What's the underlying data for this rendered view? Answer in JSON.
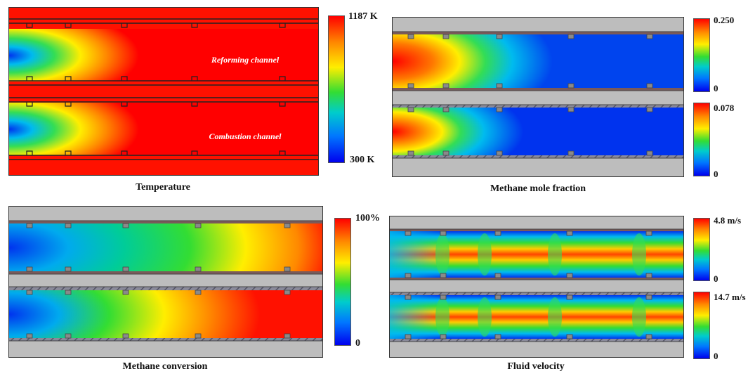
{
  "panels": {
    "temperature": {
      "caption": "Temperature",
      "max_label": "1187 K",
      "min_label": "300 K",
      "channel_labels": [
        "Reforming channel",
        "Combustion channel"
      ]
    },
    "methane_mole_fraction": {
      "caption": "Methane mole fraction",
      "top_max": "0.250",
      "top_min": "0",
      "bottom_max": "0.078",
      "bottom_min": "0"
    },
    "methane_conversion": {
      "caption": "Methane conversion",
      "max_label": "100%",
      "min_label": "0"
    },
    "fluid_velocity": {
      "caption": "Fluid velocity",
      "top_max": "4.8 m/s",
      "top_min": "0",
      "bottom_max": "14.7 m/s",
      "bottom_min": "0"
    }
  },
  "colormap": [
    "#0000ee",
    "#0077ff",
    "#00cccc",
    "#33dd33",
    "#ffee00",
    "#ff8800",
    "#ff0000"
  ]
}
